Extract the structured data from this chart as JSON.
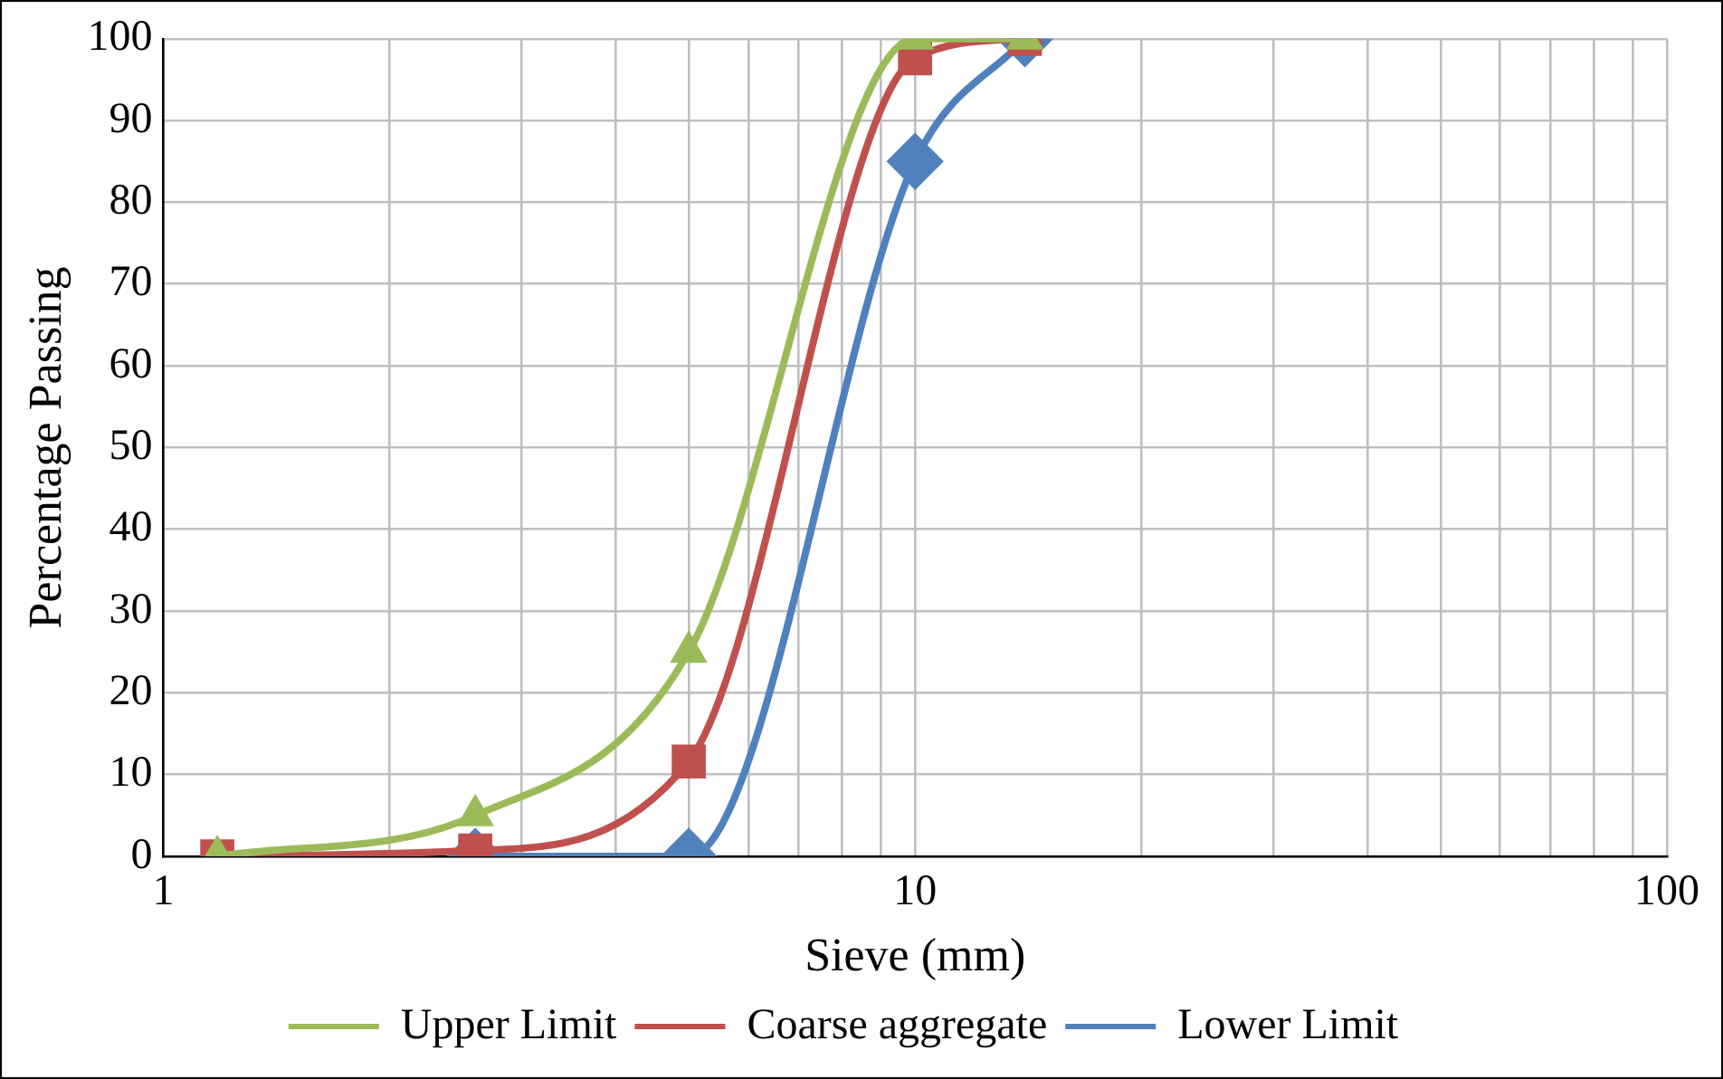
{
  "chart_data": {
    "type": "line",
    "xlabel": "Sieve (mm)",
    "ylabel": "Percentage Passing",
    "x": [
      1.18,
      2.6,
      5,
      10,
      14
    ],
    "series": [
      {
        "name": "Upper Limit",
        "color": "#9bbb59",
        "marker": "triangle",
        "values": [
          0,
          5,
          25,
          100,
          100
        ]
      },
      {
        "name": "Coarse aggregate",
        "color": "#c0504d",
        "marker": "square",
        "values": [
          0,
          0.7,
          11.6,
          97.6,
          100
        ]
      },
      {
        "name": "Lower Limit",
        "color": "#4f81bd",
        "marker": "diamond",
        "values": [
          null,
          0,
          0,
          85,
          100
        ]
      }
    ],
    "log": "x",
    "xlim": [
      1,
      100
    ],
    "xticks": [
      1,
      {
        "value": 2,
        "label": null
      },
      {
        "value": 3,
        "label": null
      },
      {
        "value": 4,
        "label": null
      },
      {
        "value": 5,
        "label": null
      },
      {
        "value": 6,
        "label": null
      },
      {
        "value": 7,
        "label": null
      },
      {
        "value": 8,
        "label": null
      },
      {
        "value": 9,
        "label": null
      },
      10,
      {
        "value": 20,
        "label": null
      },
      {
        "value": 30,
        "label": null
      },
      {
        "value": 40,
        "label": null
      },
      {
        "value": 50,
        "label": null
      },
      {
        "value": 60,
        "label": null
      },
      {
        "value": 70,
        "label": null
      },
      {
        "value": 80,
        "label": null
      },
      {
        "value": 90,
        "label": null
      },
      100
    ],
    "ylim": [
      0,
      100
    ],
    "yticks": [
      0,
      10,
      20,
      30,
      40,
      50,
      60,
      70,
      80,
      90,
      100
    ],
    "grid": true,
    "legend": "bottom",
    "line_style": "solid"
  }
}
